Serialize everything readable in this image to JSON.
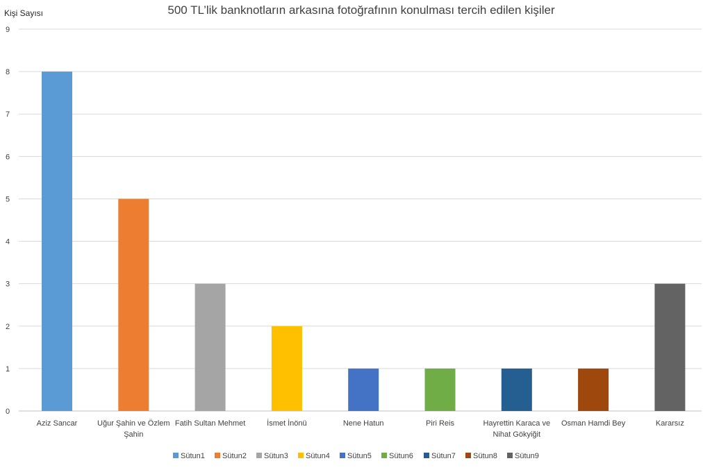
{
  "chart_data": {
    "type": "bar",
    "title": "500 TL’lik banknotların arkasına fotoğrafının konulması tercih edilen kişiler",
    "ylabel": "Kişi Sayısı",
    "xlabel": "",
    "ylim": [
      0,
      9
    ],
    "yticks": [
      0,
      1,
      2,
      3,
      4,
      5,
      6,
      7,
      8,
      9
    ],
    "grid": true,
    "legend_position": "bottom",
    "categories": [
      [
        "Aziz Sancar"
      ],
      [
        "Uğur Şahin ve Özlem",
        "Şahin"
      ],
      [
        "Fatih Sultan Mehmet"
      ],
      [
        "İsmet İnönü"
      ],
      [
        "Nene Hatun"
      ],
      [
        "Piri Reis"
      ],
      [
        "Hayrettin Karaca ve",
        "Nihat Gökyiğit"
      ],
      [
        "Osman Hamdi Bey"
      ],
      [
        "Kararsız"
      ]
    ],
    "series": [
      {
        "name": "Sütun1",
        "color": "#5B9BD5",
        "value": 8
      },
      {
        "name": "Sütun2",
        "color": "#ED7D31",
        "value": 5
      },
      {
        "name": "Sütun3",
        "color": "#A5A5A5",
        "value": 3
      },
      {
        "name": "Sütun4",
        "color": "#FFC000",
        "value": 2
      },
      {
        "name": "Sütun5",
        "color": "#4472C4",
        "value": 1
      },
      {
        "name": "Sütun6",
        "color": "#70AD47",
        "value": 1
      },
      {
        "name": "Sütun7",
        "color": "#255E91",
        "value": 1
      },
      {
        "name": "Sütun8",
        "color": "#9E480E",
        "value": 1
      },
      {
        "name": "Sütun9",
        "color": "#636363",
        "value": 3
      }
    ]
  }
}
